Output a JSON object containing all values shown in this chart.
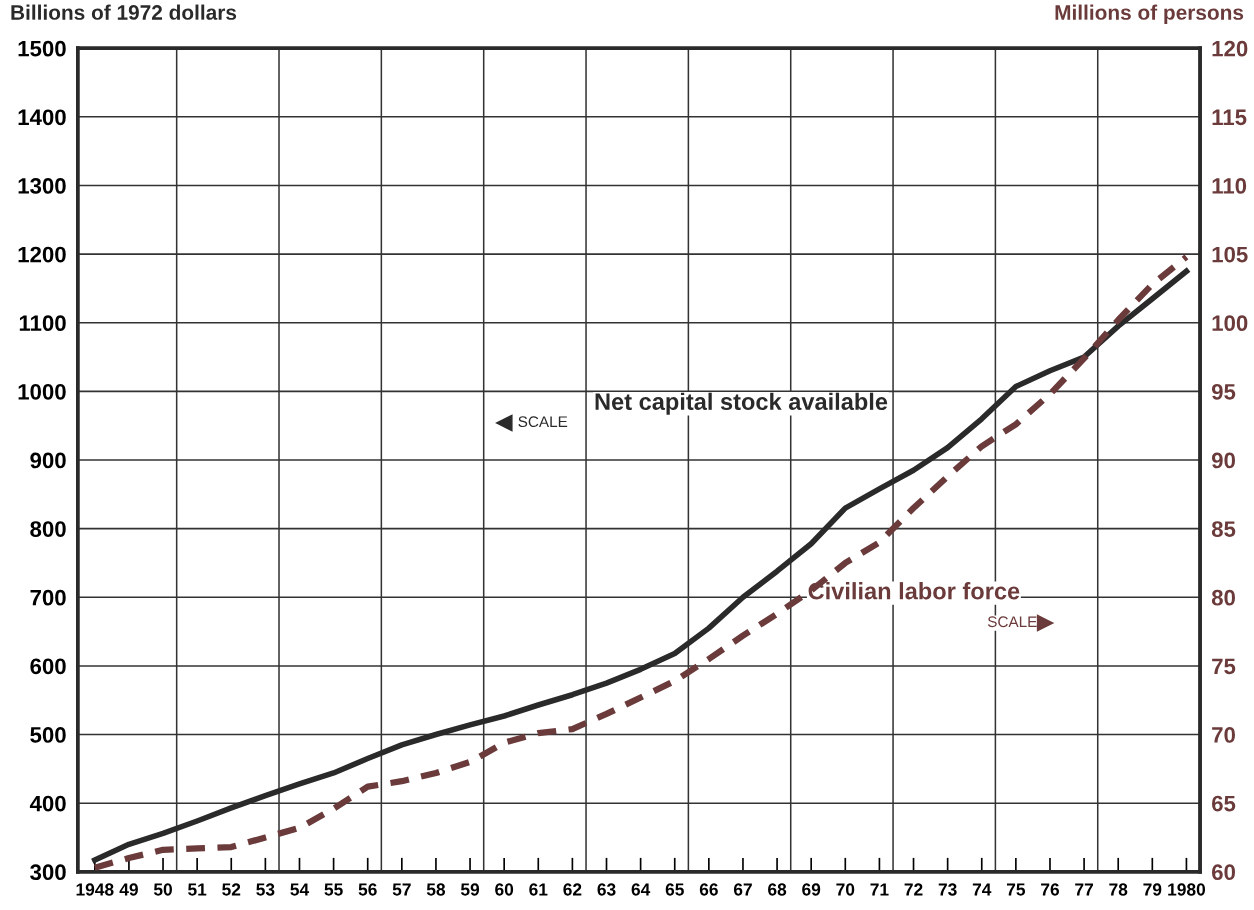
{
  "chart_data": {
    "type": "line",
    "ylabel": "Billions of 1972 dollars",
    "y2label": "Millions of persons",
    "x": [
      1948,
      1949,
      1950,
      1951,
      1952,
      1953,
      1954,
      1955,
      1956,
      1957,
      1958,
      1959,
      1960,
      1961,
      1962,
      1963,
      1964,
      1965,
      1966,
      1967,
      1968,
      1969,
      1970,
      1971,
      1972,
      1973,
      1974,
      1975,
      1976,
      1977,
      1978,
      1979,
      1980
    ],
    "series": [
      {
        "name": "Net capital stock available",
        "color": "#2a2a2a",
        "line_style": "solid",
        "values": [
          317,
          340,
          356,
          374,
          393,
          411,
          428,
          444,
          465,
          485,
          500,
          514,
          527,
          543,
          558,
          575,
          595,
          618,
          655,
          700,
          738,
          778,
          830,
          858,
          885,
          918,
          960,
          1007,
          1030,
          1050,
          1095,
          1135,
          1175
        ]
      },
      {
        "name": "Civilian labor force",
        "color": "#6b3a3a",
        "line_style": "dashed",
        "axis": "y2",
        "values": [
          60.3,
          61.0,
          61.6,
          61.7,
          61.8,
          62.5,
          63.2,
          64.6,
          66.2,
          66.6,
          67.2,
          68.0,
          69.4,
          70.1,
          70.4,
          71.5,
          72.7,
          73.9,
          75.5,
          77.2,
          78.8,
          80.5,
          82.5,
          84.0,
          86.5,
          88.8,
          91.0,
          92.6,
          94.8,
          97.4,
          100.2,
          102.8,
          104.8
        ]
      }
    ],
    "annotations": [
      "SCALE",
      "SCALE"
    ],
    "xlim": [
      1947.5,
      1980.4
    ],
    "xticks": [
      {
        "value": 1948,
        "label": "1948"
      },
      {
        "value": 1949,
        "label": "49"
      },
      {
        "value": 1950,
        "label": "50"
      },
      {
        "value": 1951,
        "label": "51"
      },
      {
        "value": 1952,
        "label": "52"
      },
      {
        "value": 1953,
        "label": "53"
      },
      {
        "value": 1954,
        "label": "54"
      },
      {
        "value": 1955,
        "label": "55"
      },
      {
        "value": 1956,
        "label": "56"
      },
      {
        "value": 1957,
        "label": "57"
      },
      {
        "value": 1958,
        "label": "58"
      },
      {
        "value": 1959,
        "label": "59"
      },
      {
        "value": 1960,
        "label": "60"
      },
      {
        "value": 1961,
        "label": "61"
      },
      {
        "value": 1962,
        "label": "62"
      },
      {
        "value": 1963,
        "label": "63"
      },
      {
        "value": 1964,
        "label": "64"
      },
      {
        "value": 1965,
        "label": "65"
      },
      {
        "value": 1966,
        "label": "66"
      },
      {
        "value": 1967,
        "label": "67"
      },
      {
        "value": 1968,
        "label": "68"
      },
      {
        "value": 1969,
        "label": "69"
      },
      {
        "value": 1970,
        "label": "70"
      },
      {
        "value": 1971,
        "label": "71"
      },
      {
        "value": 1972,
        "label": "72"
      },
      {
        "value": 1973,
        "label": "73"
      },
      {
        "value": 1974,
        "label": "74"
      },
      {
        "value": 1975,
        "label": "75"
      },
      {
        "value": 1976,
        "label": "76"
      },
      {
        "value": 1977,
        "label": "77"
      },
      {
        "value": 1978,
        "label": "78"
      },
      {
        "value": 1979,
        "label": "79"
      },
      {
        "value": 1980,
        "label": "1980"
      }
    ],
    "ylim": [
      300,
      1500
    ],
    "yticks": [
      300,
      400,
      500,
      600,
      700,
      800,
      900,
      1000,
      1100,
      1200,
      1300,
      1400,
      1500
    ],
    "y2lim": [
      60,
      120
    ],
    "y2ticks": [
      60,
      65,
      70,
      75,
      80,
      85,
      90,
      95,
      100,
      105,
      110,
      115,
      120
    ],
    "grid": true,
    "legend": false
  }
}
